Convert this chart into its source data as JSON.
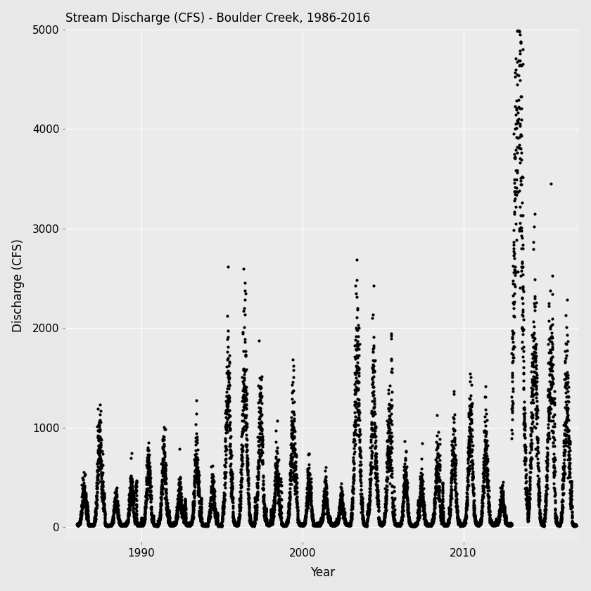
{
  "title": "Stream Discharge (CFS) - Boulder Creek, 1986-2016",
  "xlabel": "Year",
  "ylabel": "Discharge (CFS)",
  "ylim": [
    -150,
    5000
  ],
  "xlim": [
    1985.3,
    2017.2
  ],
  "yticks": [
    0,
    1000,
    2000,
    3000,
    4000,
    5000
  ],
  "xticks": [
    1990,
    2000,
    2010
  ],
  "background_color": "#EBEBEB",
  "grid_color": "#FFFFFF",
  "point_color": "#000000",
  "point_size": 9,
  "year_start": 1986,
  "year_end": 2016,
  "seed": 42,
  "peak_years": {
    "1986": 350,
    "1987": 900,
    "1988": 280,
    "1989": 400,
    "1990": 600,
    "1991": 700,
    "1992": 350,
    "1993": 700,
    "1994": 380,
    "1995": 1400,
    "1996": 1500,
    "1997": 1050,
    "1998": 600,
    "1999": 1000,
    "2000": 450,
    "2001": 350,
    "2002": 280,
    "2003": 1700,
    "2004": 1300,
    "2005": 1000,
    "2006": 500,
    "2007": 400,
    "2008": 600,
    "2009": 800,
    "2010": 1000,
    "2011": 800,
    "2012": 300,
    "2013": 4800,
    "2014": 1900,
    "2015": 1600,
    "2016": 1300
  }
}
